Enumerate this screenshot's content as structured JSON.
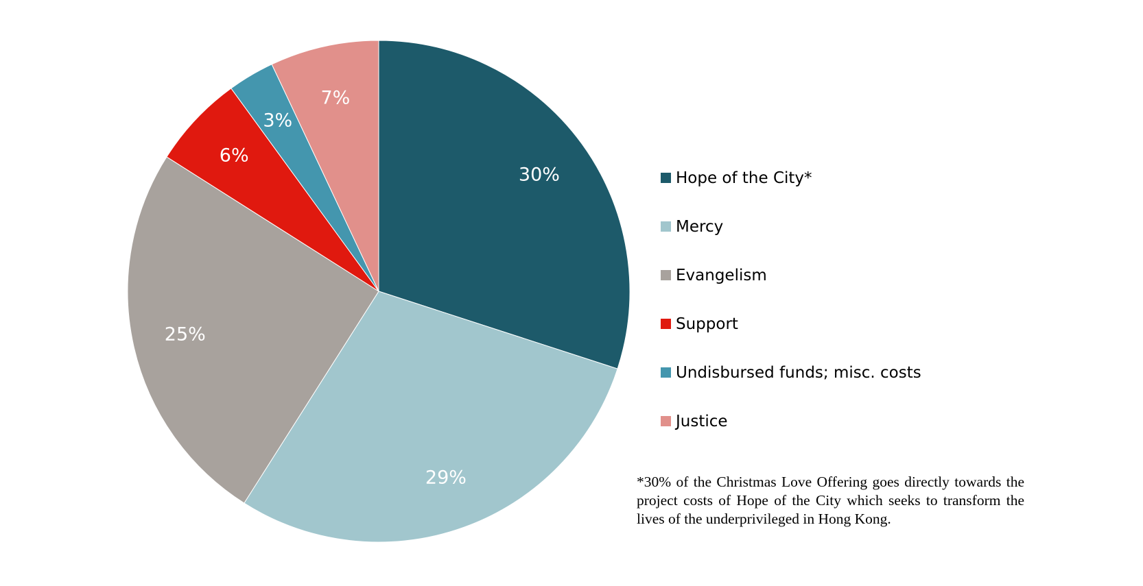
{
  "chart_data": {
    "type": "pie",
    "start_angle_deg": 0,
    "direction": "clockwise",
    "legend_position": "right",
    "slices": [
      {
        "name": "Hope of the City*",
        "value": 30,
        "label": "30%",
        "color": "#1d5a6a"
      },
      {
        "name": "Mercy",
        "value": 29,
        "label": "29%",
        "color": "#a1c6cd"
      },
      {
        "name": "Evangelism",
        "value": 25,
        "label": "25%",
        "color": "#a8a29d"
      },
      {
        "name": "Support",
        "value": 6,
        "label": "6%",
        "color": "#e0190f"
      },
      {
        "name": "Undisbursed funds; misc. costs",
        "value": 3,
        "label": "3%",
        "color": "#4496ae"
      },
      {
        "name": "Justice",
        "value": 7,
        "label": "7%",
        "color": "#e1908b"
      }
    ]
  },
  "footnote": "*30% of the Christmas Love Offering goes directly towards the project costs of Hope of the City which seeks to transform the lives of the underprivileged in Hong Kong."
}
